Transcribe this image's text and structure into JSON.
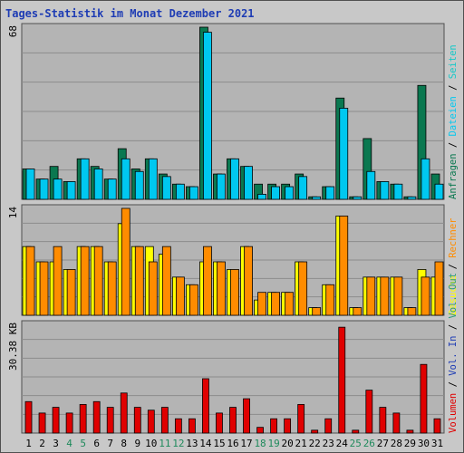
{
  "title": "Tages-Statistik im Monat Dezember 2021",
  "colors": {
    "background": "#c8c8c8",
    "plot": "#b4b4b4",
    "grid": "#8c8c8c",
    "title": "#1e3cb4",
    "anfragen": "#0a7850",
    "dateien": "#00c8f0",
    "seiten": "#14c8c8",
    "besuche": "#ffff00",
    "rechner": "#ff8c00",
    "vol_in": "#1e3cb4",
    "vol_out": "#2c9a7a",
    "volumen": "#e00000",
    "weekday": "#000000",
    "weekend": "#1f8a5c"
  },
  "chart_data": [
    {
      "type": "bar",
      "panel": "requests",
      "ymax_label": "68",
      "ylim": [
        0,
        68
      ],
      "right_labels": [
        "Anfragen",
        "Dateien",
        "Seiten"
      ],
      "categories": [
        "1",
        "2",
        "3",
        "4",
        "5",
        "6",
        "7",
        "8",
        "9",
        "10",
        "11",
        "12",
        "13",
        "14",
        "15",
        "16",
        "17",
        "18",
        "19",
        "20",
        "21",
        "22",
        "23",
        "24",
        "25",
        "26",
        "27",
        "28",
        "29",
        "30",
        "31"
      ],
      "weekend": [
        4,
        5,
        11,
        12,
        18,
        19,
        25,
        26
      ],
      "series": [
        {
          "name": "Anfragen",
          "color": "#0a7850",
          "values": [
            12,
            8,
            13,
            7,
            16,
            13,
            8,
            20,
            12,
            16,
            10,
            6,
            5,
            68,
            10,
            16,
            13,
            6,
            6,
            6,
            10,
            1,
            5,
            40,
            1,
            24,
            7,
            6,
            1,
            45,
            10
          ]
        },
        {
          "name": "Dateien",
          "color": "#00c8f0",
          "values": [
            12,
            8,
            8,
            7,
            16,
            12,
            8,
            16,
            11,
            16,
            9,
            6,
            5,
            66,
            10,
            16,
            13,
            2,
            5,
            5,
            9,
            1,
            5,
            36,
            1,
            11,
            7,
            6,
            1,
            16,
            6
          ]
        }
      ]
    },
    {
      "type": "bar",
      "panel": "visits",
      "ymax_label": "14",
      "ylim": [
        0,
        14
      ],
      "right_labels": [
        "Besuche",
        "Rechner"
      ],
      "series": [
        {
          "name": "Besuche",
          "color": "#ffff00",
          "values": [
            9,
            7,
            7,
            6,
            9,
            9,
            7,
            12,
            9,
            9,
            8,
            5,
            4,
            7,
            7,
            6,
            9,
            2,
            3,
            3,
            7,
            1,
            4,
            13,
            1,
            5,
            5,
            5,
            1,
            6,
            5
          ]
        },
        {
          "name": "Rechner",
          "color": "#ff8c00",
          "values": [
            9,
            7,
            9,
            6,
            9,
            9,
            7,
            14,
            9,
            7,
            9,
            5,
            4,
            9,
            7,
            6,
            9,
            3,
            3,
            3,
            7,
            1,
            4,
            13,
            1,
            5,
            5,
            5,
            1,
            5,
            7
          ]
        }
      ]
    },
    {
      "type": "bar",
      "panel": "volume",
      "ymax_label": "30.38 KB",
      "ylim": [
        0,
        38
      ],
      "right_labels": [
        "Volumen",
        "Vol. In",
        "Vol. Out"
      ],
      "series": [
        {
          "name": "Volumen",
          "color": "#e00000",
          "values": [
            11,
            7,
            9,
            7,
            10,
            11,
            9,
            14,
            9,
            8,
            9,
            5,
            5,
            19,
            7,
            9,
            12,
            2,
            5,
            5,
            10,
            1,
            5,
            37,
            1,
            15,
            9,
            7,
            1,
            24,
            5
          ]
        }
      ]
    }
  ]
}
